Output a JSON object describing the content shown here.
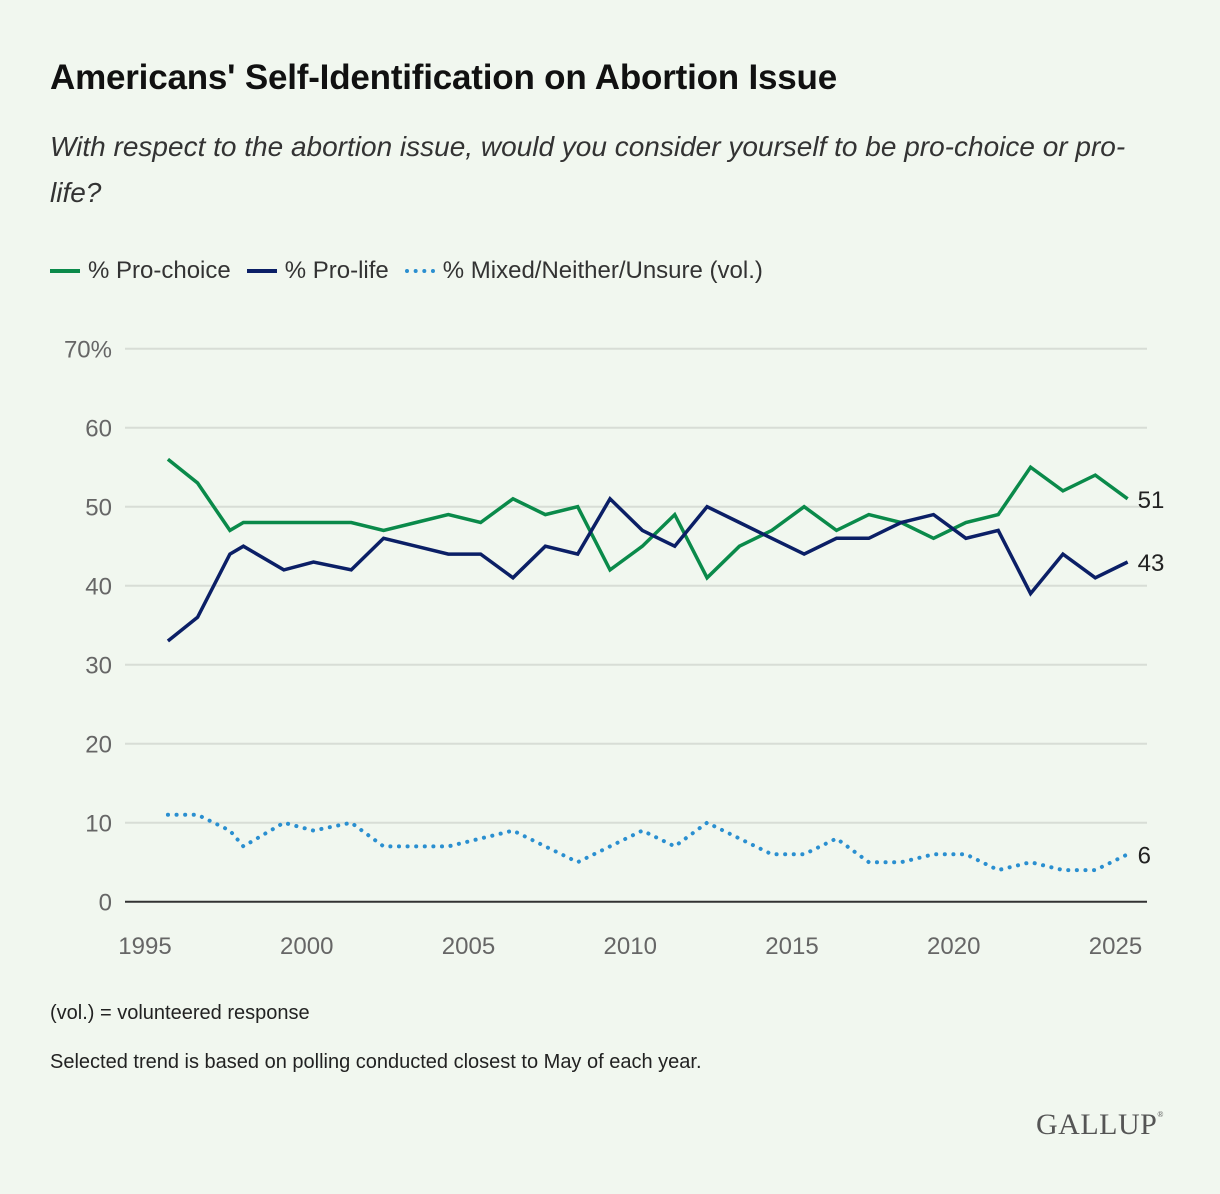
{
  "title": "Americans' Self-Identification on Abortion Issue",
  "subtitle": "With respect to the abortion issue, would you consider yourself to be pro-choice or pro-life?",
  "notes": [
    "(vol.) = volunteered response",
    "Selected trend is based on polling conducted closest to May of each year."
  ],
  "logo": "GALLUP",
  "chart_data": {
    "type": "line",
    "title": "Americans' Self-Identification on Abortion Issue",
    "xlabel": "",
    "ylabel": "",
    "xlim": [
      1995,
      2025.9
    ],
    "ylim": [
      0,
      70
    ],
    "x_ticks": [
      "1995",
      "2000",
      "2005",
      "2010",
      "2015",
      "2020",
      "2025"
    ],
    "y_ticks": [
      "0",
      "10",
      "20",
      "30",
      "40",
      "50",
      "60",
      "70%"
    ],
    "grid": true,
    "legend_position": "top-left",
    "x": [
      "1995-09",
      "1996-08",
      "1997-08",
      "1998-01",
      "1999-04",
      "2000-03",
      "2001-05",
      "2002-05",
      "2003-05",
      "2004-05",
      "2005-05",
      "2006-05",
      "2007-05",
      "2008-05",
      "2009-05",
      "2010-05",
      "2011-05",
      "2012-05",
      "2013-05",
      "2014-05",
      "2015-05",
      "2016-05",
      "2017-05",
      "2018-05",
      "2019-05",
      "2020-05",
      "2021-05",
      "2022-05",
      "2023-05",
      "2024-05",
      "2025-05"
    ],
    "series": [
      {
        "name": "% Pro-choice",
        "color": "#0a8a4a",
        "style": "solid",
        "end_label": "51",
        "values": [
          56,
          53,
          47,
          48,
          48,
          48,
          48,
          47,
          48,
          49,
          48,
          51,
          49,
          50,
          42,
          45,
          49,
          41,
          45,
          47,
          50,
          47,
          49,
          48,
          46,
          48,
          49,
          55,
          52,
          54,
          51
        ]
      },
      {
        "name": "% Pro-life",
        "color": "#0b1f66",
        "style": "solid",
        "end_label": "43",
        "values": [
          33,
          36,
          44,
          45,
          42,
          43,
          42,
          46,
          45,
          44,
          44,
          41,
          45,
          44,
          51,
          47,
          45,
          50,
          48,
          46,
          44,
          46,
          46,
          48,
          49,
          46,
          47,
          39,
          44,
          41,
          43
        ]
      },
      {
        "name": "% Mixed/Neither/Unsure (vol.)",
        "color": "#2a8fd0",
        "style": "dotted",
        "end_label": "6",
        "values": [
          11,
          11,
          9,
          7,
          10,
          9,
          10,
          7,
          7,
          7,
          8,
          9,
          7,
          5,
          7,
          9,
          7,
          10,
          8,
          6,
          6,
          8,
          5,
          5,
          6,
          6,
          4,
          5,
          4,
          4,
          6
        ]
      }
    ]
  }
}
